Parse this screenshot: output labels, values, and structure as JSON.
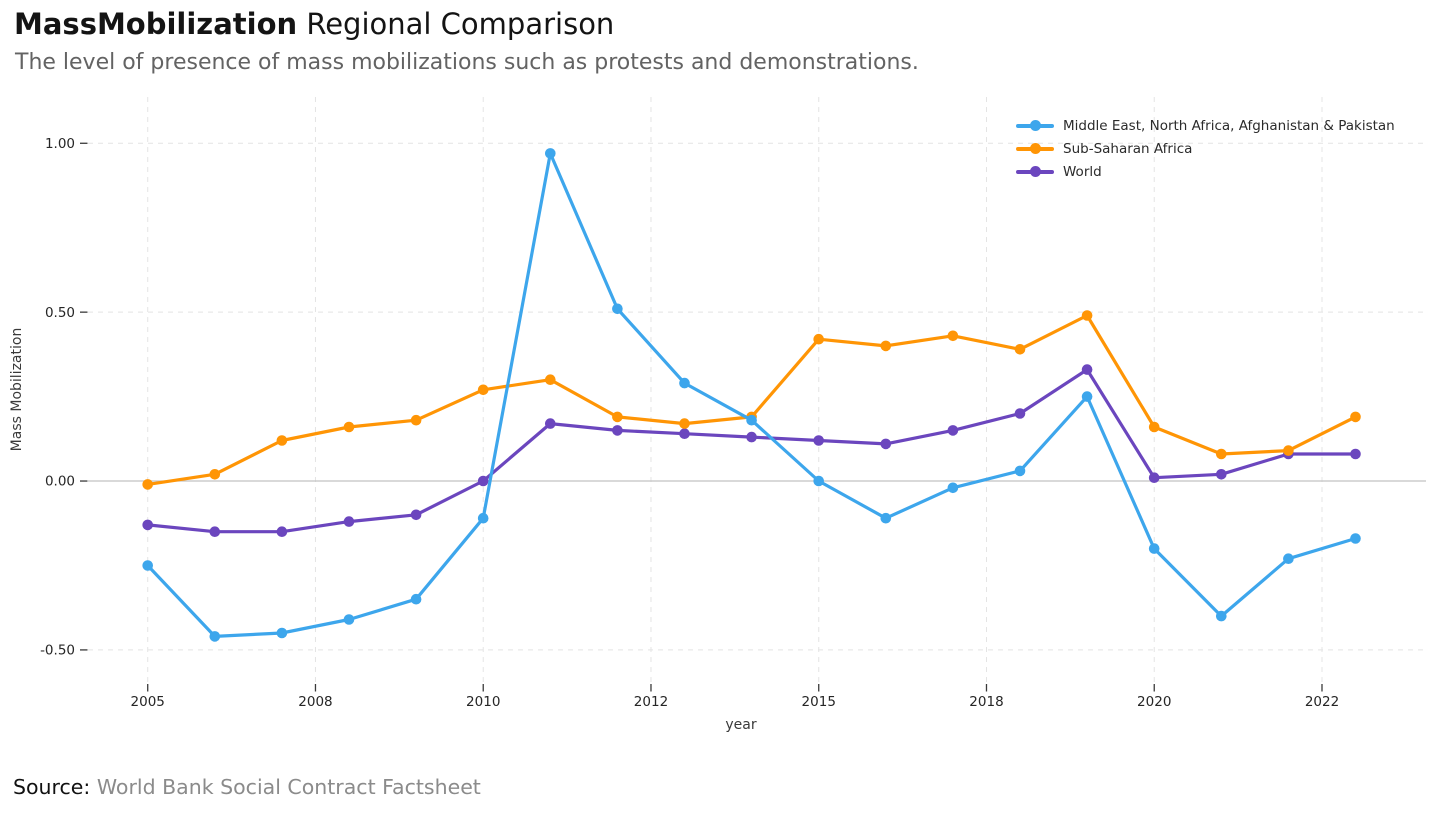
{
  "header": {
    "title_bold": "MassMobilization",
    "title_regular": "Regional Comparison",
    "subtitle": "The level of presence of mass mobilizations such as protests and demonstrations."
  },
  "footer": {
    "source_label": "Source:",
    "source_text": "World Bank Social Contract Factsheet"
  },
  "chart_data": {
    "type": "line",
    "xlabel": "year",
    "ylabel": "Mass Mobilization",
    "x": [
      2005,
      2006,
      2007,
      2008,
      2009,
      2010,
      2011,
      2012,
      2013,
      2014,
      2015,
      2016,
      2017,
      2018,
      2019,
      2020,
      2021,
      2022,
      2023
    ],
    "series": [
      {
        "name": "Middle East, North Africa, Afghanistan & Pakistan",
        "color": "#3DA6EC",
        "values": [
          -0.25,
          -0.46,
          -0.45,
          -0.41,
          -0.35,
          -0.11,
          0.97,
          0.51,
          0.29,
          0.18,
          0.0,
          -0.11,
          -0.02,
          0.03,
          0.25,
          -0.2,
          -0.4,
          -0.23,
          -0.17
        ]
      },
      {
        "name": "Sub-Saharan Africa",
        "color": "#FF9505",
        "values": [
          -0.01,
          0.02,
          0.12,
          0.16,
          0.18,
          0.27,
          0.3,
          0.19,
          0.17,
          0.19,
          0.42,
          0.4,
          0.43,
          0.39,
          0.49,
          0.16,
          0.08,
          0.09,
          0.19
        ]
      },
      {
        "name": "World",
        "color": "#6B46BE",
        "values": [
          -0.13,
          -0.15,
          -0.15,
          -0.12,
          -0.1,
          0.0,
          0.17,
          0.15,
          0.14,
          0.13,
          0.12,
          0.11,
          0.15,
          0.2,
          0.33,
          0.01,
          0.02,
          0.08,
          0.08
        ]
      }
    ],
    "x_ticks": {
      "values": [
        2005,
        2007.5,
        2010,
        2012.5,
        2015,
        2017.5,
        2020,
        2022.5
      ],
      "labels": [
        "2005",
        "2008",
        "2010",
        "2012",
        "2015",
        "2018",
        "2020",
        "2022"
      ]
    },
    "y_ticks": {
      "values": [
        1.0,
        0.5,
        0.0,
        -0.5
      ],
      "labels": [
        "1.00",
        "0.50",
        "0.00",
        "-0.50"
      ]
    },
    "xlim": [
      2004.11,
      2024.05
    ],
    "ylim": [
      -0.595,
      1.137
    ],
    "grid": "dashed",
    "zero_line": true,
    "legend_position": "top-right"
  }
}
